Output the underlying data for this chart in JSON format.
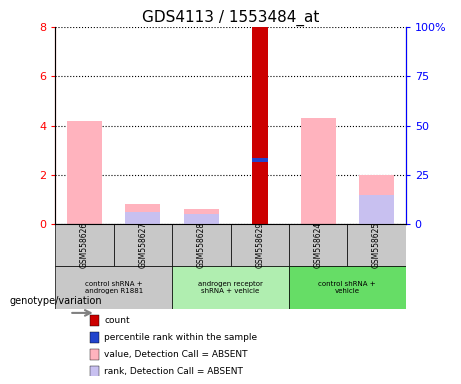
{
  "title": "GDS4113 / 1553484_at",
  "samples": [
    "GSM558626",
    "GSM558627",
    "GSM558628",
    "GSM558629",
    "GSM558624",
    "GSM558625"
  ],
  "group_labels": [
    "control shRNA +\nandrogen R1881",
    "androgen receptor\nshRNA + vehicle",
    "control shRNA +\nvehicle"
  ],
  "group_ranges": [
    [
      0,
      1
    ],
    [
      2,
      3
    ],
    [
      4,
      5
    ]
  ],
  "group_colors": [
    "#c8c8c8",
    "#b0eeb0",
    "#66dd66"
  ],
  "sample_bg_color": "#c8c8c8",
  "pink_bars": [
    4.2,
    0.8,
    0.6,
    0.0,
    4.3,
    2.0
  ],
  "lavender_bars": [
    0.0,
    0.5,
    0.4,
    0.0,
    0.0,
    1.2
  ],
  "red_bars": [
    0.0,
    0.0,
    0.0,
    8.0,
    0.0,
    0.0
  ],
  "blue_bars": [
    0.0,
    0.0,
    0.0,
    2.6,
    0.0,
    0.0
  ],
  "ylim_left": [
    0,
    8
  ],
  "ylim_right": [
    0,
    100
  ],
  "yticks_left": [
    0,
    2,
    4,
    6,
    8
  ],
  "yticks_right": [
    0,
    25,
    50,
    75,
    100
  ],
  "ytick_labels_right": [
    "0",
    "25",
    "50",
    "75",
    "100%"
  ],
  "pink_color": "#ffb3be",
  "lavender_color": "#c8c0f0",
  "red_color": "#cc0000",
  "blue_color": "#2244cc",
  "legend_colors": [
    "#cc0000",
    "#2244cc",
    "#ffb3be",
    "#c8c0f0"
  ],
  "legend_labels": [
    "count",
    "percentile rank within the sample",
    "value, Detection Call = ABSENT",
    "rank, Detection Call = ABSENT"
  ]
}
